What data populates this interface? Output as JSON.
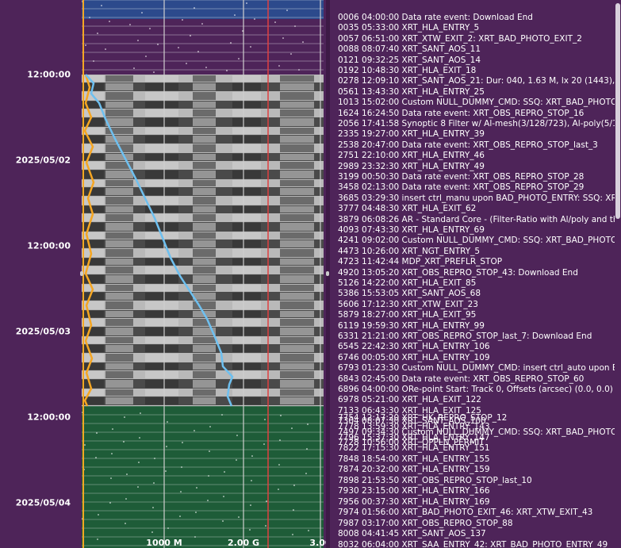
{
  "timeline": {
    "time_labels": [
      "12:00:00",
      "2025/05/02",
      "12:00:00",
      "2025/05/03",
      "12:00:00",
      "2025/05/04"
    ]
  },
  "plot": {
    "x_axis_labels": [
      "1000 M",
      "2.00 G",
      "3.00"
    ],
    "colors": {
      "top_band": "#2c4a8c",
      "planned_band": "#1e5c38",
      "past_band": "#4e2459",
      "ingest_line": "#6ec0f0",
      "rate_line": "#f5a623",
      "limit_line": "#e04040"
    }
  },
  "events": [
    "0006 04:00:00 Data rate event: Download End",
    "0035 05:33:00 XRT_HLA_ENTRY_5",
    "0057 06:51:00 XRT_XTW_EXIT_2: XRT_BAD_PHOTO_EXIT_2",
    "0088 08:07:40 XRT_SANT_AOS_11",
    "0121 09:32:25 XRT_SANT_AOS_14",
    "0192 10:48:30 XRT_HLA_EXIT_18",
    "0278 12:09:10 XRT_SANT_AOS_21: Dur: 040, 1.63 M, lx 20 (1443), 3->4",
    "0561 13:43:30 XRT_HLA_ENTRY_25",
    "1013 15:02:00 Custom NULL_DUMMY_CMD: SSQ: XRT_BAD_PHOTO_EXIT",
    "1624 16:24:50 Data rate event: XRT_OBS_REPRO_STOP_16",
    "2056 17:41:58 Synoptic 8 Filter w/ Al-mesh(3/128/723), Al-poly(5/181",
    "2335 19:27:00 XRT_HLA_ENTRY_39",
    "2538 20:47:00 Data rate event: XRT_OBS_REPRO_STOP_last_3",
    "2751 22:10:00 XRT_HLA_ENTRY_46",
    "2989 23:32:30 XRT_HLA_ENTRY_49",
    "3199 00:50:30 Data rate event: XRT_OBS_REPRO_STOP_28",
    "3458 02:13:00 Data rate event: XRT_OBS_REPRO_STOP_29",
    "3685 03:29:30 insert ctrl_manu upon BAD_PHOTO_ENTRY: SSQ: XRT_BA",
    "3777 04:48:30 XRT_HLA_EXIT_62",
    "3879 06:08:26 AR - Standard Core - (Filter-Ratio with Al/poly and thin",
    "4093 07:43:30 XRT_HLA_ENTRY_69",
    "4241 09:02:00 Custom NULL_DUMMY_CMD: SSQ: XRT_BAD_PHOTO_EXIT",
    "4473 10:26:00 XRT_NGT_ENTRY_5",
    "4723 11:42:44 MDP_XRT_PREFLR_STOP",
    "4920 13:05:20 XRT_OBS_REPRO_STOP_43: Download End",
    "5126 14:22:00 XRT_HLA_EXIT_85",
    "5386 15:53:05 XRT_SANT_AOS_68",
    "5606 17:12:30 XRT_XTW_EXIT_23",
    "5879 18:27:00 XRT_HLA_EXIT_95",
    "6119 19:59:30 XRT_HLA_ENTRY_99",
    "6331 21:21:00 XRT_OBS_REPRO_STOP_last_7: Download End",
    "6545 22:42:30 XRT_HLA_ENTRY_106",
    "6746 00:05:00 XRT_HLA_ENTRY_109",
    "6793 01:23:30 Custom NULL_DUMMY_CMD: insert ctrl_auto upon BAD_",
    "6843 02:45:00 Data rate event: XRT_OBS_REPRO_STOP_60",
    "6896 04:00:00 ORe-point Start: Track 0, Offsets (arcsec) (0.0, 0.0)",
    "6978 05:21:00 XRT_HLA_EXIT_122",
    "7133 06:43:30 XRT_HLA_EXIT_125",
    "7304 08:07:30 XRT_SANT_AOS_100",
    "7497 09:34:30 Custom NULL_DUMMY_CMD: SSQ: XRT_BAD_PHOTO_EXIT",
    "7728 10:56:00 XRT_OPPLN_PERMIT",
    "7754 12:17:20 XRT_HK_REPRO_STOP_12",
    "7778 13:59:30 XRT_HLA_ENTRY_143",
    "7796 15:37:30 XRT_HLA_ENTRY_147",
    "7822 17:15:30 XRT_HLA_ENTRY_151",
    "7848 18:54:00 XRT_HLA_ENTRY_155",
    "7874 20:32:00 XRT_HLA_ENTRY_159",
    "7898 21:53:50 XRT_OBS_REPRO_STOP_last_10",
    "7930 23:15:00 XRT_HLA_ENTRY_166",
    "7956 00:37:30 XRT_HLA_ENTRY_169",
    "7974 01:56:00 XRT_BAD_PHOTO_EXIT_46: XRT_XTW_EXIT_43",
    "7987 03:17:00 XRT_OBS_REPRO_STOP_88",
    "8008 04:41:45 XRT_SANT_AOS_137",
    "8032 06:04:00 XRT_SAA_ENTRY_42: XRT_BAD_PHOTO_ENTRY_49"
  ]
}
